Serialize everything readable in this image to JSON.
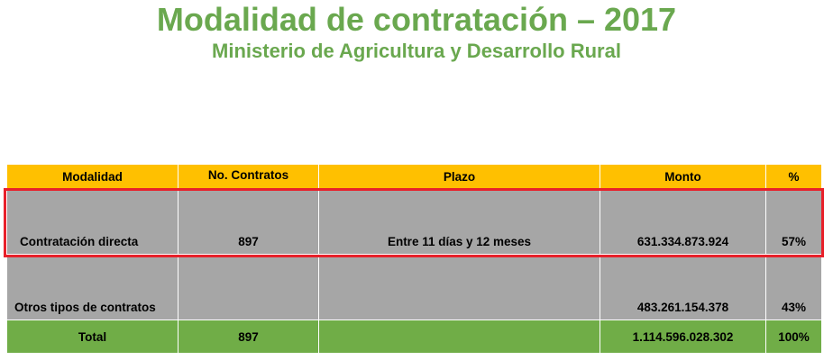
{
  "title": "Modalidad de contratación – 2017",
  "subtitle": "Ministerio de Agricultura y Desarrollo Rural",
  "table": {
    "headers": [
      "Modalidad",
      "No. Contratos",
      "Plazo",
      "Monto",
      "%"
    ],
    "rows": [
      [
        "Contratación directa",
        "897",
        "Entre  11 días y 12 meses",
        "631.334.873.924",
        "57%"
      ],
      [
        "Otros tipos de  contratos",
        "",
        "",
        "483.261.154.378",
        "43%"
      ]
    ],
    "total": [
      "Total",
      "897",
      "",
      "1.114.596.028.302",
      "100%"
    ]
  },
  "colors": {
    "title": "#6aa84f",
    "header_bg": "#ffc000",
    "row_bg": "#a6a6a6",
    "total_bg": "#70ad47",
    "highlight_border": "#e8202a"
  }
}
